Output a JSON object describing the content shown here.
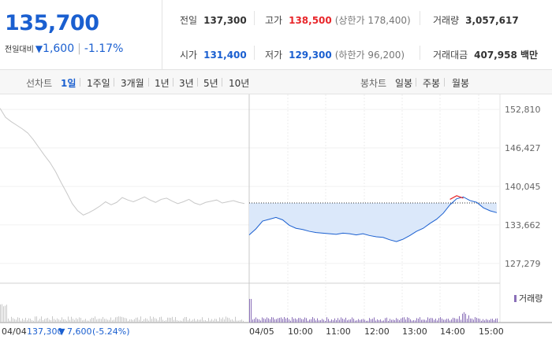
{
  "price": {
    "current": "135,700",
    "change_label": "전일대비",
    "change_value": "1,600",
    "change_pct": "-1.17%",
    "down_color": "#1a5fd0"
  },
  "stats": {
    "prev_close": {
      "label": "전일",
      "value": "137,300"
    },
    "high": {
      "label": "고가",
      "value": "138,500",
      "sub": "(상한가 178,400)"
    },
    "volume": {
      "label": "거래량",
      "value": "3,057,617"
    },
    "open": {
      "label": "시가",
      "value": "131,400"
    },
    "low": {
      "label": "저가",
      "value": "129,300",
      "sub": "(하한가 96,200)"
    },
    "amount": {
      "label": "거래대금",
      "value": "407,958 백만"
    }
  },
  "toolbar": {
    "line_label": "선차트",
    "ranges": [
      "1일",
      "1주일",
      "3개월",
      "1년",
      "3년",
      "5년",
      "10년"
    ],
    "active_range": "1일",
    "candle_label": "봉차트",
    "candles": [
      "일봉",
      "주봉",
      "월봉"
    ]
  },
  "chart_data": {
    "type": "line",
    "y_ticks": [
      "152,810",
      "146,427",
      "140,045",
      "133,662",
      "127,279"
    ],
    "ylim": [
      124000,
      154000
    ],
    "x_ticks": [
      "04/05",
      "10:00",
      "11:00",
      "12:00",
      "13:00",
      "14:00",
      "15:00"
    ],
    "prev_close_line": 137300,
    "volume_legend": "거래량",
    "footer_date": "04/04",
    "footer_value": "137,300",
    "footer_change": "7,600",
    "footer_pct": "(-5.24%)",
    "prev_series": {
      "name": "04/04",
      "values": [
        153000,
        151500,
        150800,
        150200,
        149600,
        148900,
        147800,
        146500,
        145200,
        144000,
        142500,
        140700,
        139000,
        137200,
        136000,
        135300,
        135700,
        136200,
        136800,
        137500,
        137000,
        137400,
        138200,
        137800,
        137500,
        137900,
        138300,
        137800,
        137400,
        137900,
        138100,
        137600,
        137200,
        137500,
        137900,
        137300,
        137000,
        137400,
        137600,
        137800,
        137300,
        137500,
        137700,
        137400,
        137200
      ]
    },
    "today_series": {
      "name": "04/05",
      "values": [
        132000,
        133000,
        134300,
        134600,
        134900,
        134500,
        133600,
        133100,
        132900,
        132600,
        132400,
        132300,
        132200,
        132100,
        132300,
        132200,
        132000,
        132200,
        131900,
        131700,
        131600,
        131200,
        130900,
        131300,
        131900,
        132600,
        133100,
        133900,
        134600,
        135600,
        137000,
        138000,
        138300,
        137700,
        137400,
        136500,
        136000,
        135700
      ]
    },
    "high_marks": [
      {
        "i": 30,
        "v": 137900
      },
      {
        "i": 31,
        "v": 138500
      },
      {
        "i": 32,
        "v": 138100
      }
    ]
  },
  "colors": {
    "up": "#e8262a",
    "down": "#1a5fd0",
    "line_prev": "#c8c8c8",
    "line_today": "#1a5fd0",
    "fill_today": "#dbe8fa",
    "volume": "#8a6fb8"
  }
}
